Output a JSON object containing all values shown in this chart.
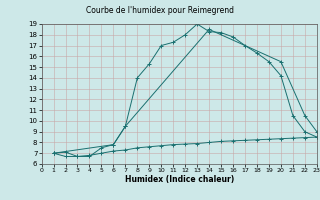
{
  "title": "Courbe de l'humidex pour Reimegrend",
  "xlabel": "Humidex (Indice chaleur)",
  "xlim": [
    0,
    23
  ],
  "ylim": [
    6,
    19
  ],
  "xticks": [
    0,
    1,
    2,
    3,
    4,
    5,
    6,
    7,
    8,
    9,
    10,
    11,
    12,
    13,
    14,
    15,
    16,
    17,
    18,
    19,
    20,
    21,
    22,
    23
  ],
  "yticks": [
    6,
    7,
    8,
    9,
    10,
    11,
    12,
    13,
    14,
    15,
    16,
    17,
    18,
    19
  ],
  "bg_color": "#cde8e8",
  "grid_color": "#b0d0d0",
  "line_color": "#1a7070",
  "line1_x": [
    1,
    2,
    3,
    4,
    5,
    6,
    7,
    8,
    9,
    10,
    11,
    12,
    13,
    14,
    15,
    16,
    17,
    18,
    19,
    20,
    21,
    22,
    23
  ],
  "line1_y": [
    7.0,
    7.1,
    6.7,
    6.7,
    7.5,
    7.8,
    9.5,
    14.0,
    15.3,
    17.0,
    17.3,
    18.0,
    19.0,
    18.3,
    18.2,
    17.8,
    17.0,
    16.3,
    15.5,
    14.2,
    10.5,
    9.0,
    8.5
  ],
  "line2_x": [
    1,
    6,
    7,
    14,
    20,
    22,
    23
  ],
  "line2_y": [
    7.0,
    7.8,
    9.5,
    18.5,
    15.5,
    10.5,
    9.0
  ],
  "line3_x": [
    1,
    2,
    3,
    4,
    5,
    6,
    7,
    8,
    9,
    10,
    11,
    12,
    13,
    14,
    15,
    16,
    17,
    18,
    19,
    20,
    21,
    22,
    23
  ],
  "line3_y": [
    7.0,
    6.7,
    6.7,
    6.8,
    7.0,
    7.2,
    7.3,
    7.5,
    7.6,
    7.7,
    7.8,
    7.85,
    7.9,
    8.0,
    8.1,
    8.15,
    8.2,
    8.25,
    8.3,
    8.35,
    8.4,
    8.45,
    8.5
  ]
}
